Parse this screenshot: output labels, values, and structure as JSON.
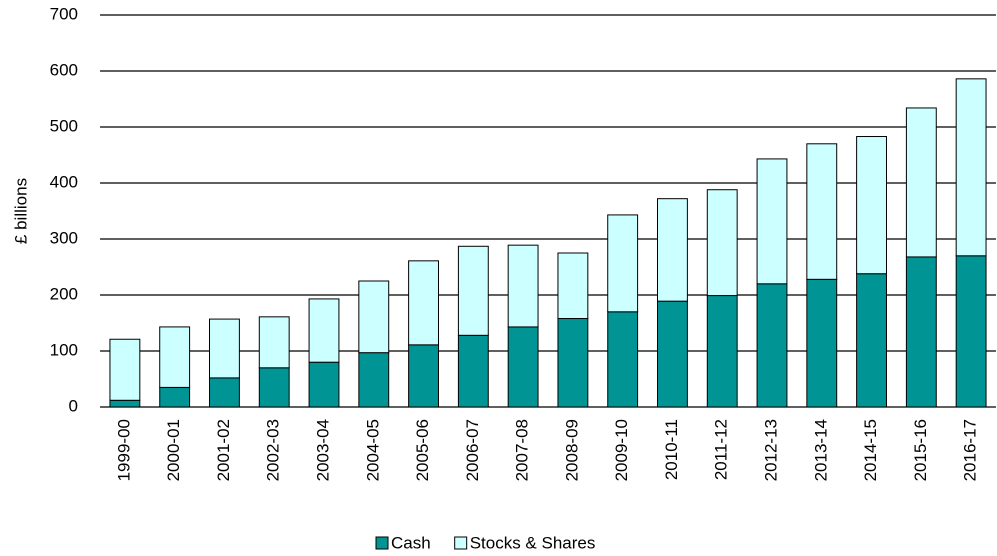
{
  "chart_data": {
    "type": "stacked_bar",
    "ylabel": "£ billions",
    "categories": [
      "1999-00",
      "2000-01",
      "2001-02",
      "2002-03",
      "2003-04",
      "2004-05",
      "2005-06",
      "2006-07",
      "2007-08",
      "2008-09",
      "2009-10",
      "2010-11",
      "2011-12",
      "2012-13",
      "2013-14",
      "2014-15",
      "2015-16",
      "2016-17"
    ],
    "series": [
      {
        "name": "Cash",
        "color": "#009494",
        "values": [
          12,
          35,
          52,
          70,
          80,
          97,
          111,
          128,
          143,
          158,
          170,
          189,
          199,
          220,
          228,
          238,
          268,
          270
        ]
      },
      {
        "name": "Stocks & Shares",
        "color": "#ccffff",
        "values": [
          109,
          108,
          105,
          91,
          113,
          128,
          150,
          159,
          146,
          117,
          173,
          183,
          189,
          223,
          242,
          245,
          266,
          316
        ]
      }
    ],
    "ylim": [
      0,
      700
    ],
    "yticks": [
      0,
      100,
      200,
      300,
      400,
      500,
      600,
      700
    ],
    "grid": true,
    "legend": "bottom"
  }
}
